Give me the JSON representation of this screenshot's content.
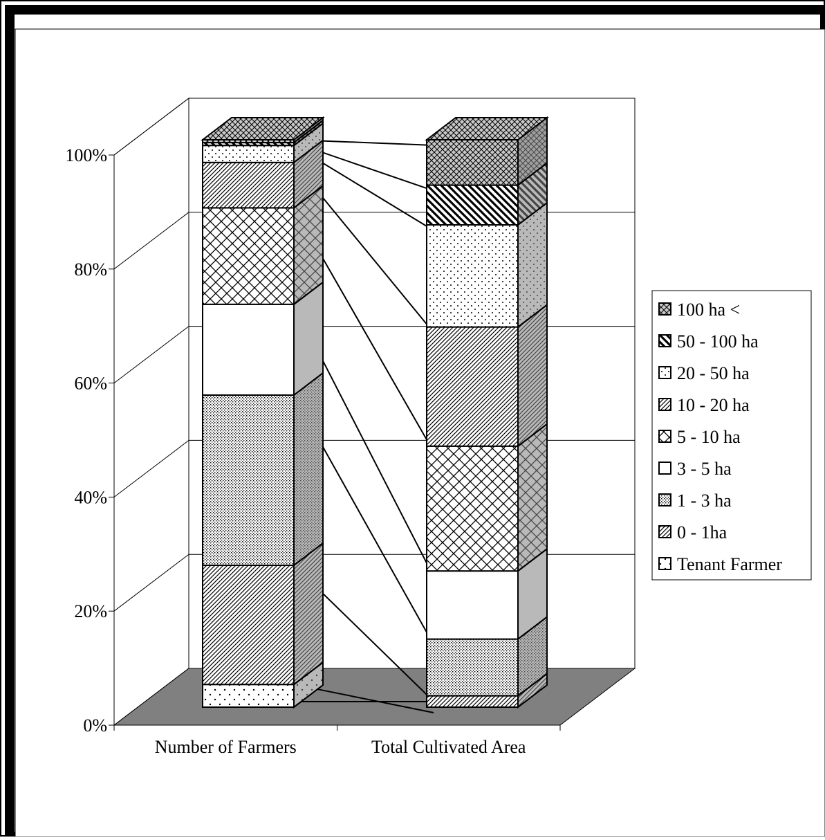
{
  "chart_data": {
    "type": "bar",
    "stacked": true,
    "percent_stacked": true,
    "three_d": true,
    "grid": true,
    "legend_position": "right",
    "title": "",
    "xlabel": "",
    "ylabel": "",
    "ylim": [
      0,
      100
    ],
    "yticks": [
      "0%",
      "20%",
      "40%",
      "60%",
      "80%",
      "100%"
    ],
    "categories": [
      "Number of Farmers",
      "Total Cultivated Area"
    ],
    "series": [
      {
        "name": "Tenant Farmer",
        "values": [
          4,
          0
        ],
        "pattern": "dots-sparse"
      },
      {
        "name": "0 - 1ha",
        "values": [
          21,
          2
        ],
        "pattern": "diag-fine"
      },
      {
        "name": "1 - 3 ha",
        "values": [
          30,
          10
        ],
        "pattern": "dots-dense"
      },
      {
        "name": "3 - 5 ha",
        "values": [
          16,
          12
        ],
        "pattern": "white"
      },
      {
        "name": "5 - 10 ha",
        "values": [
          17,
          22
        ],
        "pattern": "cross"
      },
      {
        "name": "10 - 20 ha",
        "values": [
          8,
          21
        ],
        "pattern": "diag-fine"
      },
      {
        "name": "20 - 50 ha",
        "values": [
          3,
          18
        ],
        "pattern": "dots-medium"
      },
      {
        "name": "50 - 100 ha",
        "values": [
          0.5,
          7
        ],
        "pattern": "diag-bold"
      },
      {
        "name": "100 ha <",
        "values": [
          0.5,
          8
        ],
        "pattern": "checker"
      }
    ]
  }
}
